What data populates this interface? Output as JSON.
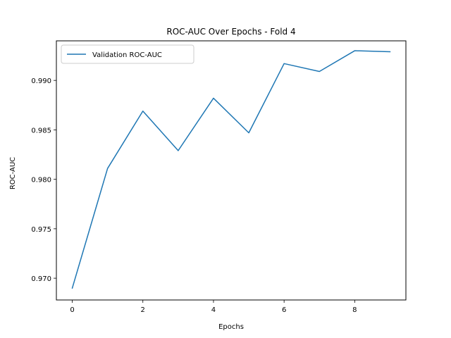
{
  "chart_data": {
    "type": "line",
    "title": "ROC-AUC Over Epochs - Fold 4",
    "xlabel": "Epochs",
    "ylabel": "ROC-AUC",
    "xlim": [
      -0.45,
      9.45
    ],
    "ylim": [
      0.9678,
      0.994
    ],
    "x_ticks": [
      0,
      2,
      4,
      6,
      8
    ],
    "y_ticks": [
      0.97,
      0.975,
      0.98,
      0.985,
      0.99
    ],
    "y_tick_labels": [
      "0.970",
      "0.975",
      "0.980",
      "0.985",
      "0.990"
    ],
    "x_tick_labels": [
      "0",
      "2",
      "4",
      "6",
      "8"
    ],
    "grid": false,
    "legend_position": "top-left",
    "series": [
      {
        "name": "Validation ROC-AUC",
        "color": "#1f77b4",
        "x": [
          0,
          1,
          2,
          3,
          4,
          5,
          6,
          7,
          8,
          9
        ],
        "values": [
          0.969,
          0.9811,
          0.9869,
          0.9829,
          0.9882,
          0.9847,
          0.9917,
          0.9909,
          0.993,
          0.9929
        ]
      }
    ]
  }
}
